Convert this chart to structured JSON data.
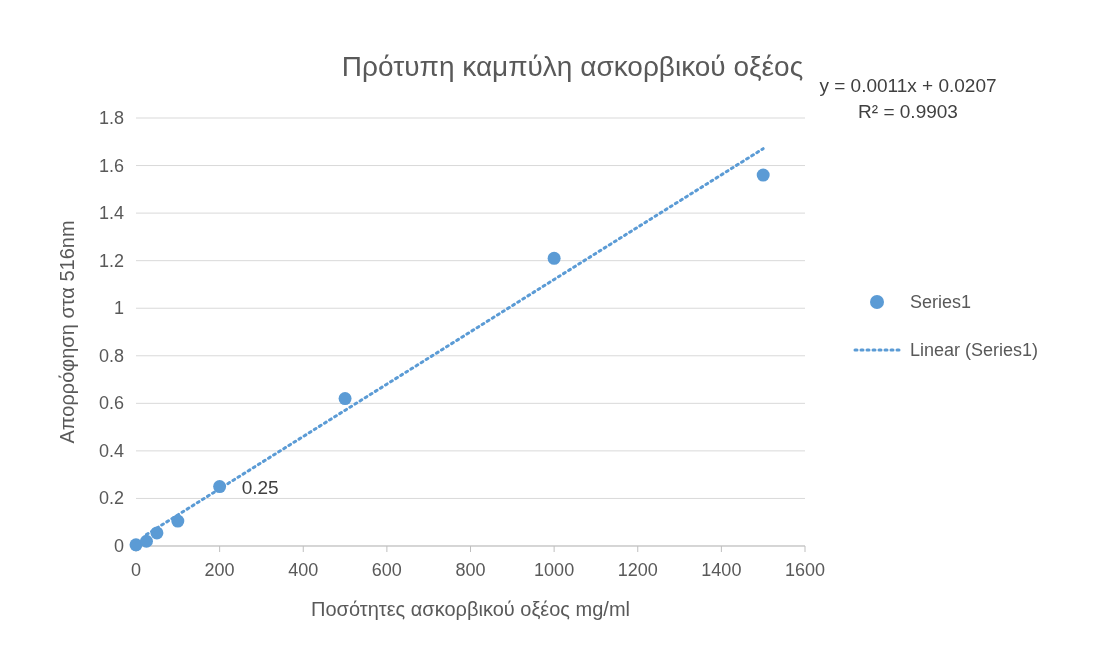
{
  "chart_data": {
    "type": "scatter",
    "title": "Πρότυπη καμπύλη ασκορβικού οξέος",
    "xlabel": "Ποσότητες ασκορβικού οξέος mg/ml",
    "ylabel": "Απορρόφηση στα 516nm",
    "series": [
      {
        "name": "Series1",
        "color": "#5b9bd5",
        "marker": "circle",
        "x": [
          0,
          25,
          50,
          100,
          200,
          500,
          1000,
          1500
        ],
        "values": [
          0.005,
          0.02,
          0.055,
          0.105,
          0.25,
          0.62,
          1.21,
          1.56
        ],
        "value_labels": [
          null,
          null,
          null,
          null,
          "0.25",
          null,
          null,
          null
        ]
      },
      {
        "name": "Linear (Series1)",
        "type": "line",
        "color": "#5b9bd5",
        "line_style": "dotted",
        "marker": "none",
        "x": [
          25,
          1500
        ],
        "values": [
          0.048,
          1.671
        ]
      }
    ],
    "annotations": [
      "y = 0.0011x + 0.0207",
      "R² = 0.9903"
    ],
    "xlim": [
      0,
      1600
    ],
    "xticks": [
      0,
      200,
      400,
      600,
      800,
      1000,
      1200,
      1400,
      1600
    ],
    "ylim": [
      0,
      1.8
    ],
    "yticks": [
      0,
      0.2,
      0.4,
      0.6,
      0.8,
      1,
      1.2,
      1.4,
      1.6,
      1.8
    ],
    "grid": "y",
    "legend": "right"
  }
}
